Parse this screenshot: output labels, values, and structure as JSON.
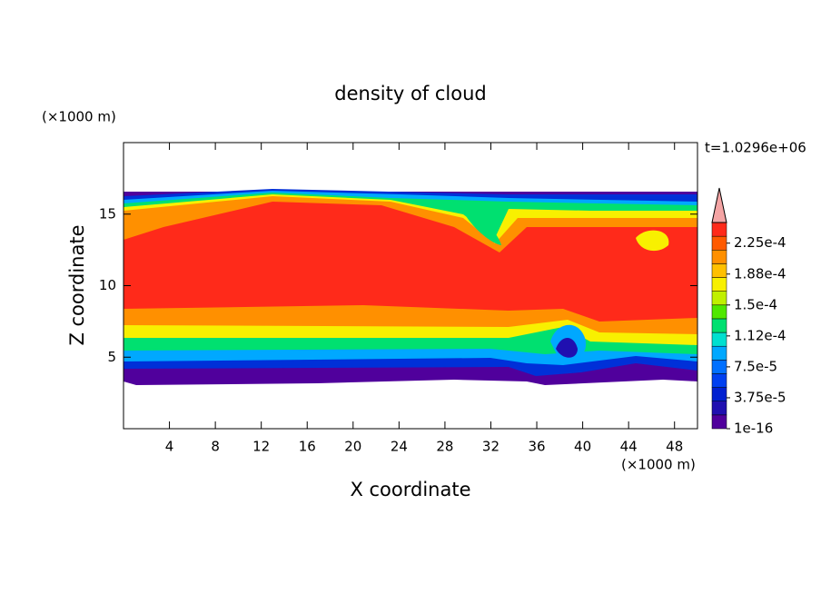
{
  "chart_data": {
    "type": "contour",
    "title": "density of cloud",
    "time_label": "t=1.0296e+06",
    "x_label": "X coordinate",
    "y_label": "Z coordinate",
    "x_unit": "(×1000 m)",
    "y_unit": "(×1000 m)",
    "xlim": [
      0,
      50
    ],
    "xticks": [
      4,
      8,
      12,
      16,
      20,
      24,
      28,
      32,
      36,
      40,
      44,
      48
    ],
    "ylim": [
      0,
      20
    ],
    "yticks": [
      5,
      10,
      15
    ],
    "colorbar": {
      "clim": [
        1e-16,
        0.00025
      ],
      "ticks": [
        {
          "value": 1e-16,
          "label": "1e-16"
        },
        {
          "value": 3.75e-05,
          "label": "3.75e-5"
        },
        {
          "value": 7.5e-05,
          "label": "7.5e-5"
        },
        {
          "value": 0.0001125,
          "label": "1.12e-4"
        },
        {
          "value": 0.00015,
          "label": "1.5e-4"
        },
        {
          "value": 0.0001875,
          "label": "1.88e-4"
        },
        {
          "value": 0.000225,
          "label": "2.25e-4"
        }
      ],
      "colors": [
        "#50009c",
        "#2010b0",
        "#0020d0",
        "#0040f0",
        "#0070ff",
        "#00a8ff",
        "#00e0d0",
        "#00e070",
        "#50e800",
        "#c0f000",
        "#f8f000",
        "#ffc000",
        "#ff9000",
        "#ff5a00",
        "#ff2a1a"
      ],
      "over_color": "#f4a4a4"
    }
  }
}
